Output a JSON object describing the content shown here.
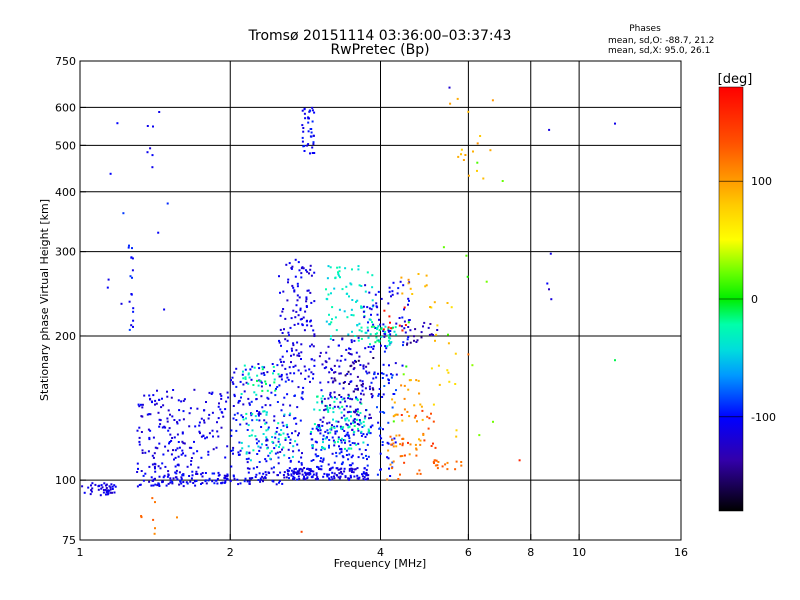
{
  "chart_data": {
    "type": "scatter",
    "title": "Tromsø 20151114 03:36:00–03:37:43",
    "subtitle": "RwPretec (Bp)",
    "xlabel": "Frequency [MHz]",
    "ylabel": "Stationary phase Virtual Height [km]",
    "x_scale": "log",
    "y_scale": "log",
    "xlim": [
      1,
      16
    ],
    "ylim": [
      75,
      750
    ],
    "x_ticks": [
      1,
      2,
      4,
      6,
      8,
      10,
      16
    ],
    "x_tick_labels": [
      "1",
      "2",
      "4",
      "6",
      "8",
      "10",
      "16"
    ],
    "y_ticks": [
      75,
      100,
      200,
      300,
      400,
      500,
      600,
      750
    ],
    "y_tick_labels": [
      "75",
      "100",
      "200",
      "300",
      "400",
      "500",
      "600",
      "750"
    ],
    "grid": true,
    "phase_stats": {
      "heading": "Phases",
      "line_o": "mean, sd,O: -88.7, 21.2",
      "line_x": "mean, sd,X:  95.0, 26.1"
    },
    "colorbar": {
      "label": "[deg]",
      "range": [
        -180,
        180
      ],
      "ticks": [
        100,
        0,
        -100
      ],
      "tick_labels": [
        "100",
        "0",
        "-100"
      ]
    },
    "clusters": [
      {
        "f": [
          1.0,
          1.18
        ],
        "h": [
          93,
          99
        ],
        "phase": -115,
        "n": 45
      },
      {
        "f": [
          1.3,
          1.75
        ],
        "h": [
          97,
          108
        ],
        "phase": -110,
        "n": 70
      },
      {
        "f": [
          1.3,
          2.0
        ],
        "h": [
          108,
          155
        ],
        "phase": -112,
        "n": 170
      },
      {
        "f": [
          1.5,
          2.6
        ],
        "h": [
          98,
          104
        ],
        "phase": -108,
        "n": 110
      },
      {
        "f": [
          2.0,
          2.8
        ],
        "h": [
          105,
          175
        ],
        "phase": -105,
        "n": 190
      },
      {
        "f": [
          2.1,
          2.7
        ],
        "h": [
          110,
          140
        ],
        "phase": -35,
        "n": 55
      },
      {
        "f": [
          2.1,
          2.5
        ],
        "h": [
          150,
          175
        ],
        "phase": -25,
        "n": 30
      },
      {
        "f": [
          2.5,
          2.95
        ],
        "h": [
          160,
          290
        ],
        "phase": -112,
        "n": 130
      },
      {
        "f": [
          2.6,
          3.8
        ],
        "h": [
          100,
          106
        ],
        "phase": -110,
        "n": 150
      },
      {
        "f": [
          2.9,
          3.8
        ],
        "h": [
          106,
          130
        ],
        "phase": -100,
        "n": 120
      },
      {
        "f": [
          2.9,
          3.8
        ],
        "h": [
          115,
          150
        ],
        "phase": -30,
        "n": 90
      },
      {
        "f": [
          3.0,
          3.9
        ],
        "h": [
          130,
          200
        ],
        "phase": -115,
        "n": 140
      },
      {
        "f": [
          3.2,
          3.9
        ],
        "h": [
          150,
          180
        ],
        "phase": -145,
        "n": 30
      },
      {
        "f": [
          3.1,
          3.9
        ],
        "h": [
          195,
          280
        ],
        "phase": -35,
        "n": 80
      },
      {
        "f": [
          3.7,
          4.6
        ],
        "h": [
          165,
          260
        ],
        "phase": -105,
        "n": 80
      },
      {
        "f": [
          3.8,
          4.3
        ],
        "h": [
          100,
          170
        ],
        "phase": -95,
        "n": 55
      },
      {
        "f": [
          3.8,
          4.3
        ],
        "h": [
          190,
          210
        ],
        "phase": -25,
        "n": 35
      },
      {
        "f": [
          4.0,
          4.5
        ],
        "h": [
          205,
          230
        ],
        "phase": 170,
        "n": 10
      },
      {
        "f": [
          4.2,
          4.9
        ],
        "h": [
          115,
          165
        ],
        "phase": 100,
        "n": 35
      },
      {
        "f": [
          4.1,
          4.9
        ],
        "h": [
          100,
          125
        ],
        "phase": 115,
        "n": 25
      },
      {
        "f": [
          4.4,
          5.2
        ],
        "h": [
          190,
          215
        ],
        "phase": -135,
        "n": 20
      },
      {
        "f": [
          4.4,
          5.2
        ],
        "h": [
          105,
          140
        ],
        "phase": 140,
        "n": 20
      },
      {
        "f": [
          4.3,
          5.0
        ],
        "h": [
          240,
          270
        ],
        "phase": 95,
        "n": 10
      },
      {
        "f": [
          5.0,
          5.9
        ],
        "h": [
          120,
          260
        ],
        "phase": 80,
        "n": 20
      },
      {
        "f": [
          5.1,
          5.9
        ],
        "h": [
          105,
          110
        ],
        "phase": 120,
        "n": 15
      },
      {
        "f": [
          2.78,
          2.95
        ],
        "h": [
          470,
          600
        ],
        "phase": -105,
        "n": 40
      },
      {
        "f": [
          1.25,
          1.28
        ],
        "h": [
          205,
          310
        ],
        "phase": -100,
        "n": 18
      },
      {
        "f": [
          1.36,
          1.42
        ],
        "h": [
          440,
          580
        ],
        "phase": -110,
        "n": 6
      },
      {
        "f": [
          5.5,
          7.0
        ],
        "h": [
          420,
          650
        ],
        "phase": 90,
        "n": 16
      },
      {
        "f": [
          4.2,
          7.6
        ],
        "h": [
          120,
          480
        ],
        "phase": 20,
        "n": 14
      },
      {
        "f": [
          1.05,
          1.5
        ],
        "h": [
          170,
          600
        ],
        "phase": -100,
        "n": 10
      },
      {
        "f": [
          8.5,
          8.8
        ],
        "h": [
          150,
          650
        ],
        "phase": -115,
        "n": 5
      },
      {
        "f": [
          1.15,
          1.6
        ],
        "h": [
          75,
          95
        ],
        "phase": 120,
        "n": 8
      }
    ],
    "extra_points": [
      {
        "x": 11.8,
        "y": 555,
        "phase": -110
      },
      {
        "x": 11.8,
        "y": 178,
        "phase": -10
      },
      {
        "x": 6.0,
        "y": 183,
        "phase": 120
      },
      {
        "x": 2.78,
        "y": 78,
        "phase": 140
      },
      {
        "x": 7.6,
        "y": 110,
        "phase": 160
      },
      {
        "x": 5.5,
        "y": 660,
        "phase": -120
      }
    ]
  }
}
